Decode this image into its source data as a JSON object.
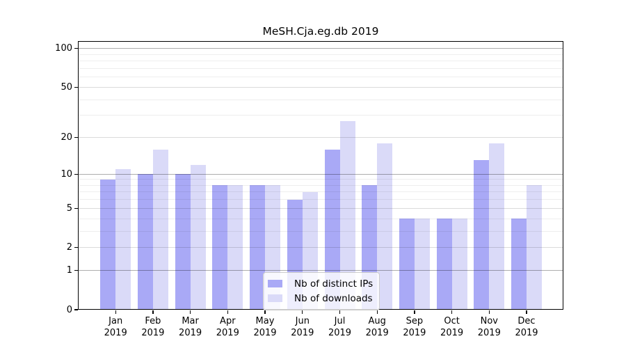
{
  "title": "MeSH.Cja.eg.db 2019",
  "legend": {
    "items": [
      {
        "label": "Nb of distinct IPs",
        "color": "#a9a9f6"
      },
      {
        "label": "Nb of downloads",
        "color": "#dadaf8"
      }
    ]
  },
  "chart_data": {
    "type": "bar",
    "title": "MeSH.Cja.eg.db 2019",
    "categories": [
      "Jan",
      "Feb",
      "Mar",
      "Apr",
      "May",
      "Jun",
      "Jul",
      "Aug",
      "Sep",
      "Oct",
      "Nov",
      "Dec"
    ],
    "year": "2019",
    "series": [
      {
        "name": "Nb of distinct IPs",
        "color": "#a9a9f6",
        "values": [
          9,
          10,
          10,
          8,
          8,
          6,
          16,
          8,
          4,
          4,
          13,
          4
        ]
      },
      {
        "name": "Nb of downloads",
        "color": "#dadaf8",
        "values": [
          11,
          16,
          12,
          8,
          8,
          7,
          27,
          18,
          4,
          4,
          18,
          8
        ]
      }
    ],
    "xlabel": "",
    "ylabel": "",
    "yscale": "log10(1+x)",
    "ytick_labels": [
      "100",
      "50",
      "20",
      "10",
      "5",
      "2",
      "1",
      "0"
    ],
    "yticks": [
      100,
      50,
      20,
      10,
      5,
      2,
      1,
      0
    ],
    "ylim": [
      0,
      114
    ],
    "grid": true,
    "legend_position": "lower-center"
  }
}
